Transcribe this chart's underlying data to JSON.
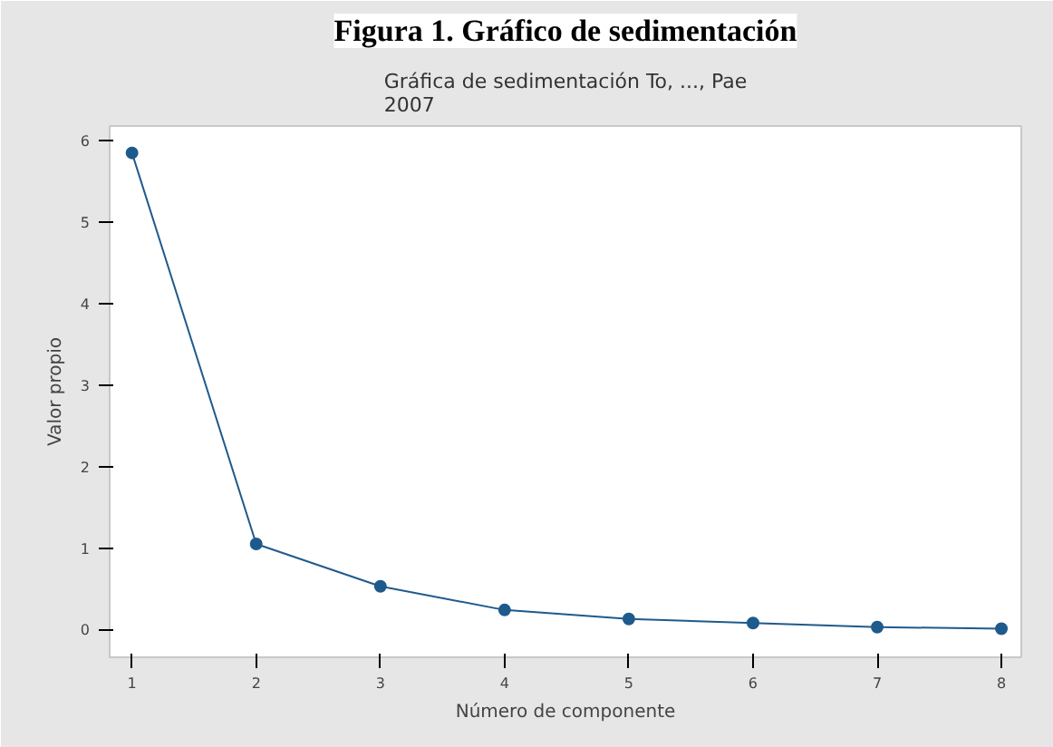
{
  "chart_data": {
    "type": "line",
    "title": "Figura 1. Gráfico de sedimentación",
    "subtitle": "Gráfica de sedimentación To, ..., Pae\n2007",
    "xlabel": "Número de componente",
    "ylabel": "Valor propio",
    "x": [
      1,
      2,
      3,
      4,
      5,
      6,
      7,
      8
    ],
    "series": [
      {
        "color": "#1f5a8c",
        "values": [
          5.85,
          1.05,
          0.53,
          0.24,
          0.13,
          0.08,
          0.03,
          0.01
        ]
      }
    ],
    "xlim": [
      0.82,
      8.16
    ],
    "ylim": [
      -0.34,
      6.18
    ],
    "xticks": [
      1,
      2,
      3,
      4,
      5,
      6,
      7,
      8
    ],
    "yticks": [
      0,
      1,
      2,
      3,
      4,
      5,
      6
    ],
    "grid": false,
    "marker": "circle",
    "line_style": "solid"
  }
}
